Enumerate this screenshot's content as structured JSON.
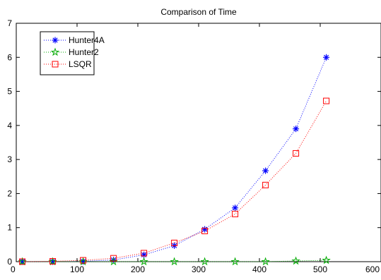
{
  "chart_data": {
    "type": "line",
    "title": "Comparison of Time",
    "xlabel": "",
    "ylabel": "",
    "xlim": [
      0,
      600
    ],
    "ylim": [
      0,
      7
    ],
    "xticks": [
      0,
      100,
      200,
      300,
      400,
      500,
      600
    ],
    "yticks": [
      0,
      1,
      2,
      3,
      4,
      5,
      6,
      7
    ],
    "grid": false,
    "legend_position": "top-left",
    "series": [
      {
        "name": "Hunter4A",
        "color": "#0000ff",
        "marker": "asterisk",
        "linestyle": "dotted",
        "x": [
          10,
          60,
          110,
          160,
          210,
          260,
          310,
          360,
          410,
          460,
          510
        ],
        "y": [
          0.0,
          0.0,
          0.01,
          0.05,
          0.2,
          0.47,
          0.95,
          1.58,
          2.67,
          3.9,
          6.0
        ]
      },
      {
        "name": "Hunter2",
        "color": "#00aa00",
        "marker": "pentagram",
        "linestyle": "dotted",
        "x": [
          10,
          60,
          110,
          160,
          210,
          260,
          310,
          360,
          410,
          460,
          510
        ],
        "y": [
          0.0,
          0.0,
          0.0,
          0.0,
          0.0,
          0.0,
          0.0,
          0.0,
          0.0,
          0.02,
          0.04
        ]
      },
      {
        "name": "LSQR",
        "color": "#ff0000",
        "marker": "square",
        "linestyle": "dotted",
        "x": [
          10,
          60,
          110,
          160,
          210,
          260,
          310,
          360,
          410,
          460,
          510
        ],
        "y": [
          0.0,
          0.01,
          0.04,
          0.1,
          0.25,
          0.55,
          0.9,
          1.4,
          2.25,
          3.18,
          4.72
        ]
      }
    ]
  }
}
